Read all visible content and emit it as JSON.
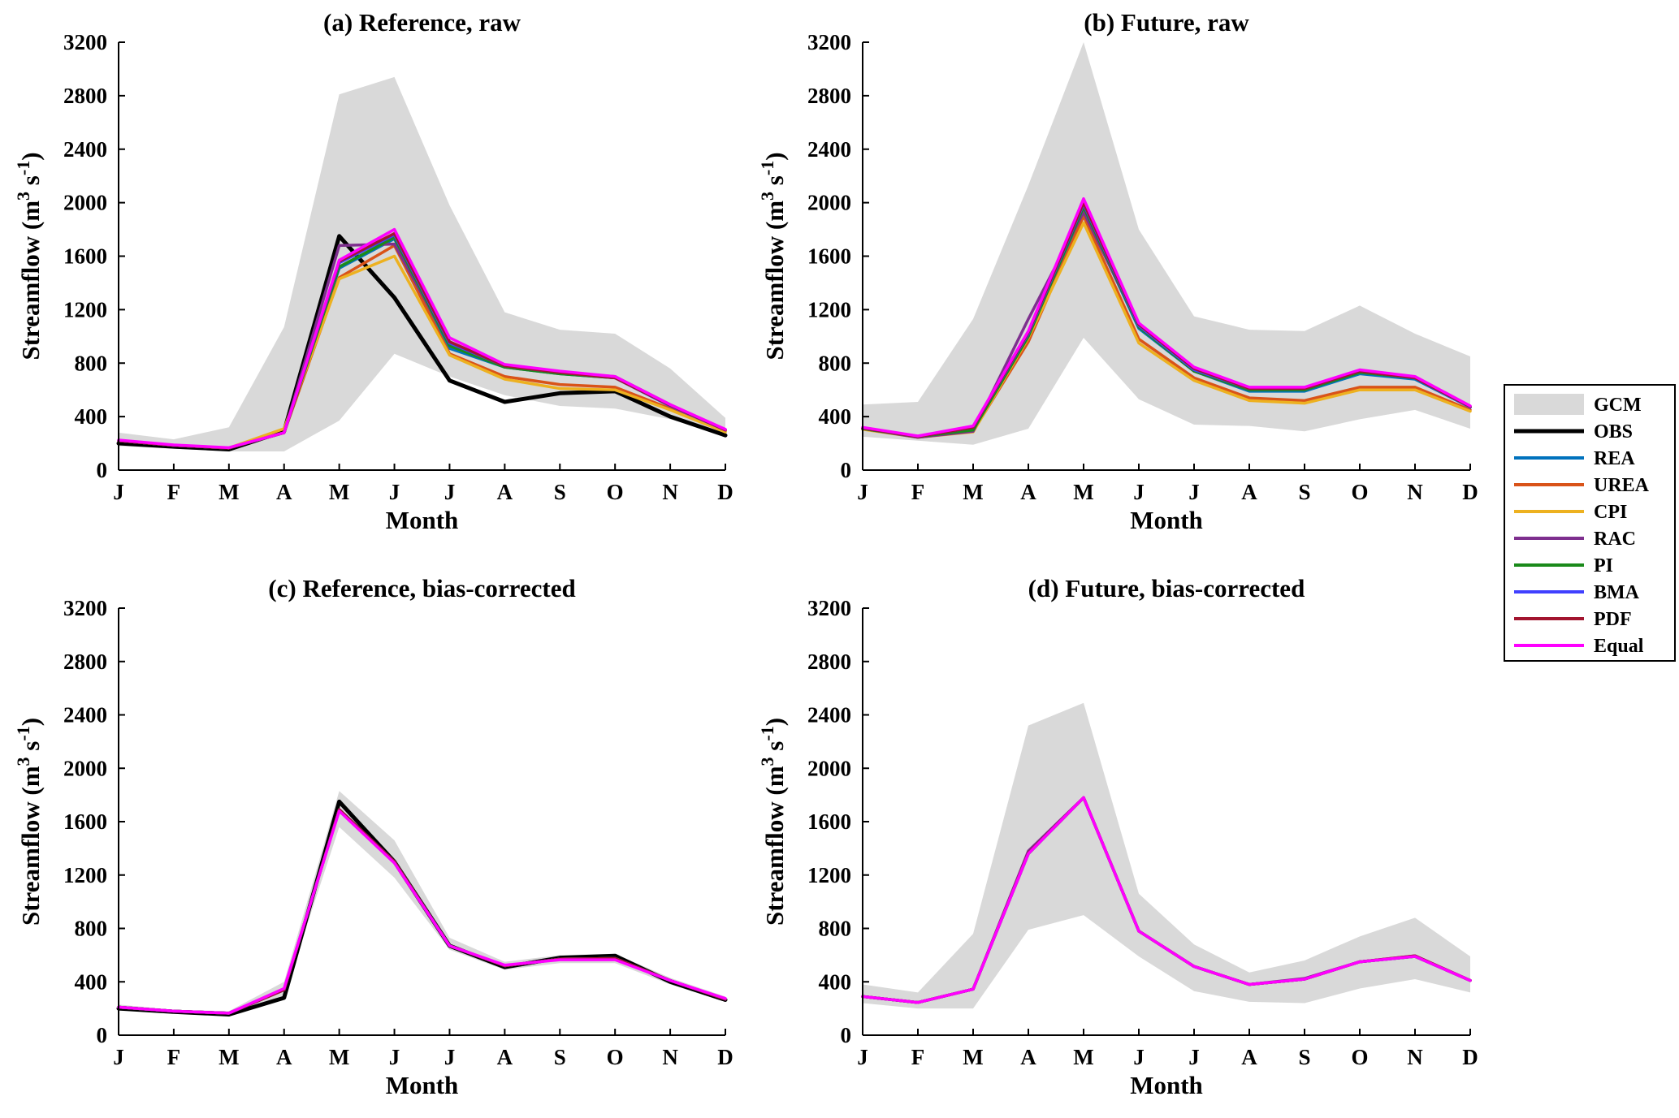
{
  "legend": [
    {
      "key": "GCM",
      "label": "GCM",
      "kind": "band",
      "color": "#d9d9d9"
    },
    {
      "key": "OBS",
      "label": "OBS",
      "kind": "line",
      "color": "#000000"
    },
    {
      "key": "REA",
      "label": "REA",
      "kind": "line",
      "color": "#0072bd"
    },
    {
      "key": "UREA",
      "label": "UREA",
      "kind": "line",
      "color": "#d95319"
    },
    {
      "key": "CPI",
      "label": "CPI",
      "kind": "line",
      "color": "#edb120"
    },
    {
      "key": "RAC",
      "label": "RAC",
      "kind": "line",
      "color": "#7e2f8e"
    },
    {
      "key": "PI",
      "label": "PI",
      "kind": "line",
      "color": "#1a8a1a"
    },
    {
      "key": "BMA",
      "label": "BMA",
      "kind": "line",
      "color": "#4040ff"
    },
    {
      "key": "PDF",
      "label": "PDF",
      "kind": "line",
      "color": "#a2142f"
    },
    {
      "key": "Equal",
      "label": "Equal",
      "kind": "line",
      "color": "#ff00ff"
    }
  ],
  "chart_data": [
    {
      "type": "line",
      "title": "(a) Reference, raw",
      "xlabel": "Month",
      "ylabel": "Streamflow (m³ s⁻¹)",
      "ylabel_main": "Streamflow",
      "ylabel_unit": "(m",
      "ylabel_sup1": "3",
      "ylabel_mid": " s",
      "ylabel_sup2": "-1",
      "ylabel_end": ")",
      "categories": [
        "J",
        "F",
        "M",
        "A",
        "M",
        "J",
        "J",
        "A",
        "S",
        "O",
        "N",
        "D"
      ],
      "ylim": [
        0,
        3200
      ],
      "yticks": [
        0,
        400,
        800,
        1200,
        1600,
        2000,
        2400,
        2800,
        3200
      ],
      "band": {
        "name": "GCM",
        "lower": [
          180,
          160,
          140,
          140,
          370,
          870,
          700,
          560,
          480,
          460,
          380,
          260
        ],
        "upper": [
          280,
          230,
          320,
          1070,
          2810,
          2940,
          1980,
          1180,
          1050,
          1020,
          760,
          390
        ]
      },
      "series": [
        {
          "name": "OBS",
          "values": [
            200,
            175,
            155,
            290,
            1750,
            1290,
            670,
            510,
            575,
            590,
            400,
            260
          ]
        },
        {
          "name": "REA",
          "values": [
            220,
            185,
            165,
            280,
            1510,
            1730,
            910,
            770,
            720,
            690,
            480,
            300
          ]
        },
        {
          "name": "UREA",
          "values": [
            220,
            185,
            165,
            280,
            1440,
            1680,
            870,
            700,
            640,
            620,
            460,
            290
          ]
        },
        {
          "name": "CPI",
          "values": [
            220,
            185,
            165,
            310,
            1430,
            1600,
            860,
            680,
            610,
            600,
            450,
            285
          ]
        },
        {
          "name": "RAC",
          "values": [
            220,
            185,
            165,
            280,
            1680,
            1690,
            940,
            780,
            730,
            700,
            490,
            300
          ]
        },
        {
          "name": "PI",
          "values": [
            220,
            185,
            165,
            280,
            1520,
            1740,
            930,
            770,
            720,
            690,
            480,
            300
          ]
        },
        {
          "name": "BMA",
          "values": [
            220,
            185,
            165,
            280,
            1550,
            1760,
            950,
            780,
            730,
            690,
            480,
            300
          ]
        },
        {
          "name": "PDF",
          "values": [
            220,
            185,
            165,
            280,
            1560,
            1770,
            960,
            780,
            730,
            690,
            485,
            300
          ]
        },
        {
          "name": "Equal",
          "values": [
            225,
            188,
            168,
            280,
            1570,
            1800,
            990,
            790,
            740,
            700,
            490,
            305
          ]
        }
      ]
    },
    {
      "type": "line",
      "title": "(b) Future, raw",
      "xlabel": "Month",
      "ylabel": "Streamflow (m³ s⁻¹)",
      "ylabel_main": "Streamflow",
      "ylabel_unit": "(m",
      "ylabel_sup1": "3",
      "ylabel_mid": " s",
      "ylabel_sup2": "-1",
      "ylabel_end": ")",
      "categories": [
        "J",
        "F",
        "M",
        "A",
        "M",
        "J",
        "J",
        "A",
        "S",
        "O",
        "N",
        "D"
      ],
      "ylim": [
        0,
        3200
      ],
      "yticks": [
        0,
        400,
        800,
        1200,
        1600,
        2000,
        2400,
        2800,
        3200
      ],
      "band": {
        "name": "GCM",
        "lower": [
          250,
          220,
          190,
          310,
          990,
          530,
          340,
          330,
          290,
          380,
          450,
          310
        ],
        "upper": [
          490,
          510,
          1130,
          2130,
          3200,
          1800,
          1150,
          1050,
          1040,
          1230,
          1020,
          850
        ]
      },
      "series": [
        {
          "name": "REA",
          "values": [
            310,
            250,
            310,
            970,
            1950,
            1060,
            740,
            590,
            590,
            720,
            680,
            470
          ]
        },
        {
          "name": "UREA",
          "values": [
            310,
            245,
            290,
            960,
            1900,
            980,
            690,
            540,
            520,
            620,
            620,
            450
          ]
        },
        {
          "name": "CPI",
          "values": [
            305,
            245,
            285,
            990,
            1850,
            950,
            670,
            520,
            500,
            600,
            600,
            440
          ]
        },
        {
          "name": "RAC",
          "values": [
            310,
            245,
            290,
            1130,
            1930,
            1080,
            740,
            600,
            600,
            740,
            690,
            470
          ]
        },
        {
          "name": "PI",
          "values": [
            310,
            250,
            300,
            1000,
            1970,
            1070,
            740,
            600,
            600,
            730,
            690,
            470
          ]
        },
        {
          "name": "BMA",
          "values": [
            315,
            250,
            320,
            1020,
            1990,
            1080,
            750,
            610,
            610,
            740,
            690,
            470
          ]
        },
        {
          "name": "PDF",
          "values": [
            315,
            250,
            320,
            1030,
            2000,
            1090,
            760,
            610,
            610,
            740,
            690,
            475
          ]
        },
        {
          "name": "Equal",
          "values": [
            320,
            255,
            330,
            1040,
            2030,
            1100,
            770,
            620,
            620,
            750,
            700,
            480
          ]
        }
      ]
    },
    {
      "type": "line",
      "title": "(c) Reference, bias-corrected",
      "xlabel": "Month",
      "ylabel": "Streamflow (m³ s⁻¹)",
      "ylabel_main": "Streamflow",
      "ylabel_unit": "(m",
      "ylabel_sup1": "3",
      "ylabel_mid": " s",
      "ylabel_sup2": "-1",
      "ylabel_end": ")",
      "categories": [
        "J",
        "F",
        "M",
        "A",
        "M",
        "J",
        "J",
        "A",
        "S",
        "O",
        "N",
        "D"
      ],
      "ylim": [
        0,
        3200
      ],
      "yticks": [
        0,
        400,
        800,
        1200,
        1600,
        2000,
        2400,
        2800,
        3200
      ],
      "band": {
        "name": "GCM",
        "lower": [
          190,
          160,
          150,
          300,
          1560,
          1180,
          640,
          490,
          540,
          540,
          380,
          250
        ],
        "upper": [
          230,
          190,
          180,
          400,
          1830,
          1460,
          730,
          550,
          600,
          610,
          430,
          290
        ]
      },
      "series": [
        {
          "name": "OBS",
          "values": [
            200,
            175,
            155,
            280,
            1750,
            1300,
            670,
            510,
            580,
            595,
            400,
            265
          ]
        },
        {
          "name": "REA",
          "values": [
            210,
            180,
            165,
            340,
            1690,
            1300,
            670,
            520,
            570,
            575,
            410,
            270
          ]
        },
        {
          "name": "UREA",
          "values": [
            210,
            180,
            165,
            340,
            1690,
            1300,
            670,
            520,
            570,
            575,
            410,
            270
          ]
        },
        {
          "name": "CPI",
          "values": [
            210,
            180,
            165,
            340,
            1690,
            1300,
            670,
            520,
            570,
            575,
            410,
            270
          ]
        },
        {
          "name": "RAC",
          "values": [
            210,
            180,
            165,
            340,
            1690,
            1300,
            670,
            520,
            570,
            575,
            410,
            270
          ]
        },
        {
          "name": "PI",
          "values": [
            210,
            180,
            165,
            340,
            1690,
            1300,
            670,
            520,
            570,
            575,
            410,
            270
          ]
        },
        {
          "name": "BMA",
          "values": [
            210,
            180,
            165,
            340,
            1690,
            1300,
            670,
            520,
            570,
            575,
            410,
            270
          ]
        },
        {
          "name": "PDF",
          "values": [
            210,
            180,
            165,
            340,
            1690,
            1300,
            670,
            520,
            570,
            575,
            410,
            270
          ]
        },
        {
          "name": "Equal",
          "values": [
            210,
            180,
            165,
            350,
            1680,
            1290,
            670,
            525,
            565,
            565,
            410,
            275
          ]
        }
      ]
    },
    {
      "type": "line",
      "title": "(d) Future, bias-corrected",
      "xlabel": "Month",
      "ylabel": "Streamflow (m³ s⁻¹)",
      "ylabel_main": "Streamflow",
      "ylabel_unit": "(m",
      "ylabel_sup1": "3",
      "ylabel_mid": " s",
      "ylabel_sup2": "-1",
      "ylabel_end": ")",
      "categories": [
        "J",
        "F",
        "M",
        "A",
        "M",
        "J",
        "J",
        "A",
        "S",
        "O",
        "N",
        "D"
      ],
      "ylim": [
        0,
        3200
      ],
      "yticks": [
        0,
        400,
        800,
        1200,
        1600,
        2000,
        2400,
        2800,
        3200
      ],
      "band": {
        "name": "GCM",
        "lower": [
          240,
          200,
          200,
          790,
          900,
          590,
          330,
          250,
          240,
          350,
          420,
          320
        ],
        "upper": [
          380,
          320,
          760,
          2320,
          2490,
          1060,
          680,
          470,
          560,
          740,
          880,
          590
        ]
      },
      "series": [
        {
          "name": "REA",
          "values": [
            290,
            245,
            345,
            1360,
            1780,
            780,
            515,
            380,
            420,
            550,
            590,
            410
          ]
        },
        {
          "name": "UREA",
          "values": [
            290,
            245,
            345,
            1360,
            1780,
            780,
            515,
            380,
            420,
            550,
            590,
            410
          ]
        },
        {
          "name": "CPI",
          "values": [
            290,
            245,
            345,
            1360,
            1780,
            780,
            515,
            380,
            420,
            550,
            590,
            410
          ]
        },
        {
          "name": "RAC",
          "values": [
            290,
            245,
            345,
            1380,
            1780,
            780,
            515,
            380,
            425,
            550,
            595,
            410
          ]
        },
        {
          "name": "PI",
          "values": [
            290,
            245,
            345,
            1360,
            1780,
            780,
            515,
            380,
            420,
            550,
            590,
            410
          ]
        },
        {
          "name": "BMA",
          "values": [
            290,
            245,
            345,
            1360,
            1780,
            780,
            515,
            380,
            420,
            550,
            590,
            410
          ]
        },
        {
          "name": "PDF",
          "values": [
            290,
            245,
            345,
            1365,
            1780,
            780,
            515,
            380,
            420,
            550,
            595,
            410
          ]
        },
        {
          "name": "Equal",
          "values": [
            290,
            245,
            345,
            1360,
            1780,
            780,
            515,
            380,
            420,
            550,
            590,
            410
          ]
        }
      ]
    }
  ]
}
